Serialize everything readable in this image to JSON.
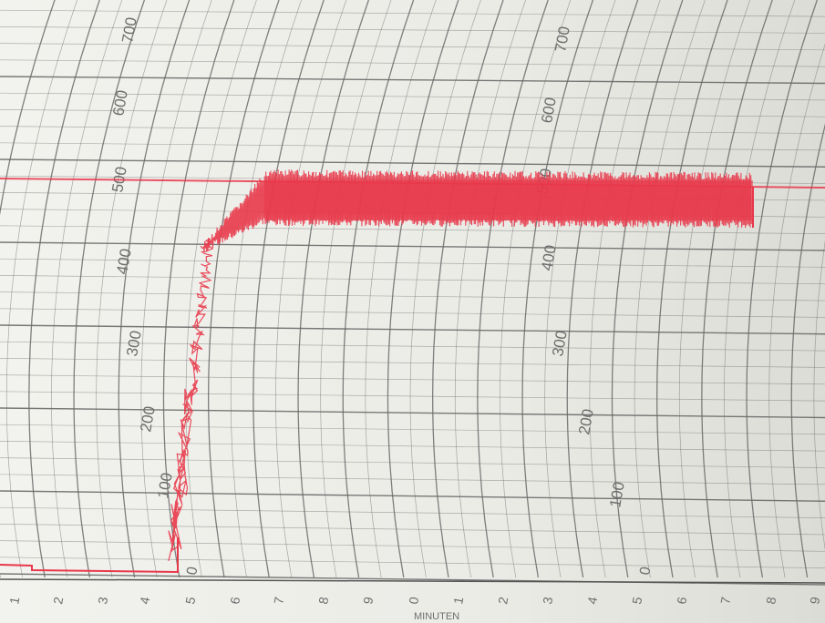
{
  "paper": {
    "background": "#ecece7",
    "grid_color": "#6a6a6a",
    "trace_color": "#e8384a"
  },
  "scale_left": [
    "100",
    "200",
    "300",
    "400",
    "500",
    "600",
    "700"
  ],
  "scale_right": [
    "100",
    "200",
    "300",
    "400",
    "500",
    "600",
    "700"
  ],
  "zero_labels": [
    "0",
    "0"
  ],
  "bottom_axis": {
    "title": "MINUTEN",
    "ticks": [
      "1",
      "2",
      "3",
      "4",
      "5",
      "6",
      "7",
      "8",
      "9",
      "0",
      "1",
      "2",
      "3",
      "4",
      "5",
      "6",
      "7",
      "8",
      "9"
    ]
  }
}
